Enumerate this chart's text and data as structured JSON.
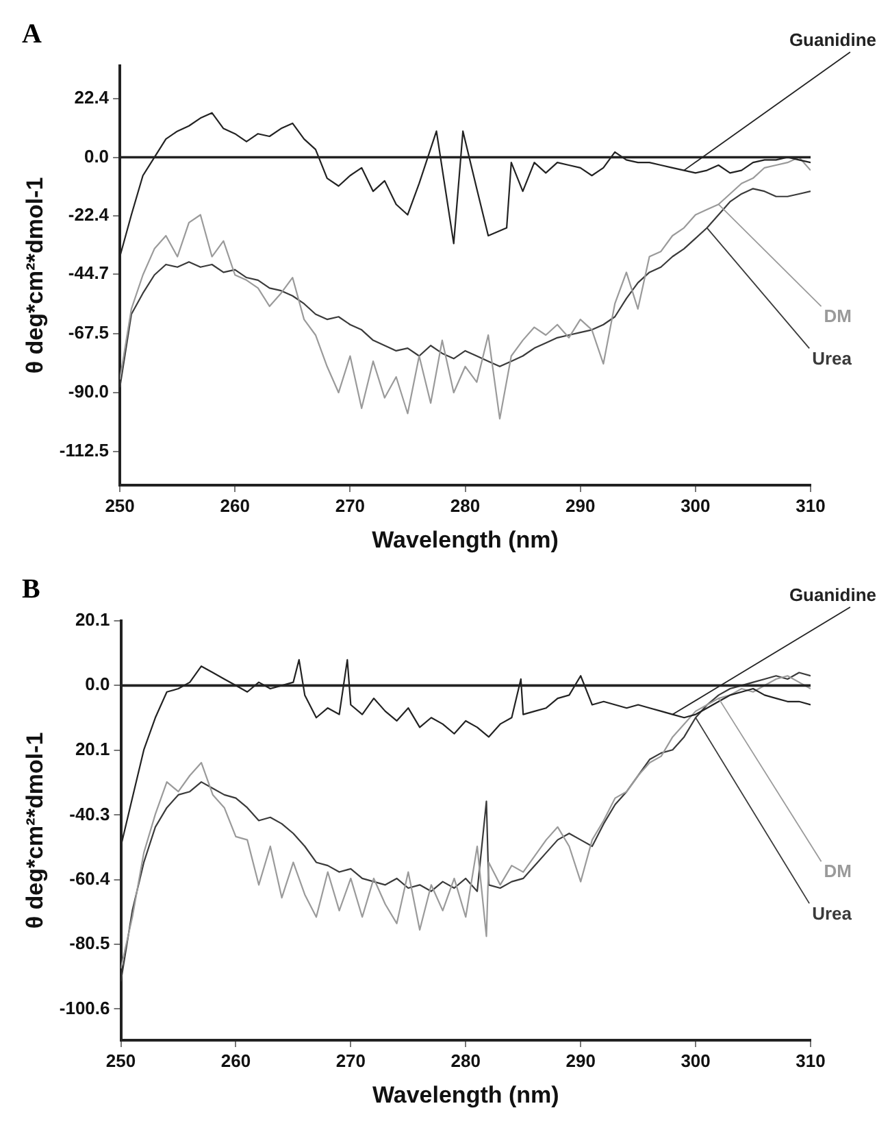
{
  "chart_data": [
    {
      "type": "line",
      "title": "A",
      "xlabel": "Wavelength (nm)",
      "ylabel": "θ deg*cm²*dmol-1",
      "xlim": [
        250,
        310
      ],
      "xticks": [
        250,
        260,
        270,
        280,
        290,
        300,
        310
      ],
      "ylim": [
        -125.4,
        35
      ],
      "yticks": [
        22.4,
        {
          "value": 0,
          "label": "0.0"
        },
        -22.4,
        -44.7,
        -67.5,
        {
          "value": -90,
          "label": "-90.0"
        },
        -112.5
      ],
      "grid": false,
      "legend": false,
      "marker": "none",
      "ref_lines": [
        {
          "axis": "y",
          "value": 0,
          "color": "#222222"
        }
      ],
      "series": [
        {
          "name": "Guanidine",
          "color": "#222222",
          "x": [
            250,
            251,
            252,
            253,
            254,
            255,
            256,
            257,
            258,
            259,
            260,
            261,
            262,
            263,
            264,
            265,
            266,
            267,
            268,
            269,
            270,
            271,
            272,
            273,
            274,
            275,
            276,
            277.5,
            279,
            279.8,
            281,
            282,
            283.6,
            284,
            285,
            286,
            287,
            288,
            289,
            290,
            291,
            292,
            293,
            294,
            295,
            296,
            297,
            298,
            299,
            300,
            301,
            302,
            303,
            304,
            305,
            306,
            307,
            308,
            309,
            310
          ],
          "values": [
            -38,
            -22,
            -7,
            0,
            7,
            10,
            12,
            15,
            17,
            11,
            9,
            6,
            9,
            8,
            11,
            13,
            7,
            3,
            -8,
            -11,
            -7,
            -4,
            -13,
            -9,
            -18,
            -22,
            -10,
            10,
            -33,
            10,
            -12,
            -30,
            -27,
            -2,
            -13,
            -2,
            -6,
            -2,
            -3,
            -4,
            -7,
            -4,
            2,
            -1,
            -2,
            -2,
            -3,
            -4,
            -5,
            -6,
            -5,
            -3,
            -6,
            -5,
            -2,
            -1,
            -1,
            0,
            -1,
            -2
          ]
        },
        {
          "name": "DM",
          "color": "#9a9a9a",
          "x": [
            250,
            251,
            252,
            253,
            254,
            255,
            256,
            257,
            258,
            259,
            260,
            261,
            262,
            263,
            264,
            265,
            266,
            267,
            268,
            269,
            270,
            271,
            272,
            273,
            274,
            275,
            276,
            277,
            278,
            279,
            280,
            281,
            282,
            283,
            284,
            285,
            286,
            287,
            288,
            289,
            290,
            291,
            292,
            293,
            294,
            295,
            296,
            297,
            298,
            299,
            300,
            301,
            302,
            303,
            304,
            305,
            306,
            307,
            308,
            309,
            310
          ],
          "values": [
            -85,
            -58,
            -45,
            -35,
            -30,
            -38,
            -25,
            -22,
            -38,
            -32,
            -45,
            -47,
            -50,
            -57,
            -52,
            -46,
            -62,
            -68,
            -80,
            -90,
            -76,
            -96,
            -78,
            -92,
            -84,
            -98,
            -76,
            -94,
            -70,
            -90,
            -80,
            -86,
            -68,
            -100,
            -76,
            -70,
            -65,
            -68,
            -64,
            -69,
            -62,
            -66,
            -79,
            -56,
            -44,
            -58,
            -38,
            -36,
            -30,
            -27,
            -22,
            -20,
            -18,
            -14,
            -10,
            -8,
            -4,
            -3,
            -2,
            0,
            -5
          ]
        },
        {
          "name": "Urea",
          "color": "#3a3a3a",
          "x": [
            250,
            251,
            252,
            253,
            254,
            255,
            256,
            257,
            258,
            259,
            260,
            261,
            262,
            263,
            264,
            265,
            266,
            267,
            268,
            269,
            270,
            271,
            272,
            273,
            274,
            275,
            276,
            277,
            278,
            279,
            280,
            281,
            282,
            283,
            284,
            285,
            286,
            287,
            288,
            289,
            290,
            291,
            292,
            293,
            294,
            295,
            296,
            297,
            298,
            299,
            300,
            301,
            302,
            303,
            304,
            305,
            306,
            307,
            308,
            309,
            310
          ],
          "values": [
            -88,
            -60,
            -52,
            -45,
            -41,
            -42,
            -40,
            -42,
            -41,
            -44,
            -43,
            -46,
            -47,
            -50,
            -51,
            -53,
            -56,
            -60,
            -62,
            -61,
            -64,
            -66,
            -70,
            -72,
            -74,
            -73,
            -76,
            -72,
            -75,
            -77,
            -74,
            -76,
            -78,
            -80,
            -78,
            -76,
            -73,
            -71,
            -69,
            -68,
            -67,
            -66,
            -64,
            -61,
            -54,
            -48,
            -44,
            -42,
            -38,
            -35,
            -31,
            -27,
            -22,
            -17,
            -14,
            -12,
            -13,
            -15,
            -15,
            -14,
            -13
          ]
        }
      ]
    },
    {
      "type": "line",
      "title": "B",
      "xlabel": "Wavelength (nm)",
      "ylabel": "θ deg*cm²*dmol-1",
      "xlim": [
        250,
        310
      ],
      "xticks": [
        250,
        260,
        270,
        280,
        290,
        300,
        310
      ],
      "ylim": [
        -110.3,
        20.1
      ],
      "yticks": [
        20.1,
        {
          "value": 0,
          "label": "0.0"
        },
        {
          "value": -20.1,
          "label": "20.1"
        },
        -40.3,
        -60.4,
        -80.5,
        -100.6
      ],
      "grid": false,
      "legend": false,
      "marker": "none",
      "ref_lines": [
        {
          "axis": "y",
          "value": 0,
          "color": "#222222"
        }
      ],
      "series": [
        {
          "name": "Guanidine",
          "color": "#222222",
          "x": [
            250,
            251,
            252,
            253,
            254,
            255,
            256,
            257,
            258,
            259,
            260,
            261,
            262,
            263,
            264,
            265,
            265.5,
            266,
            267,
            268,
            269,
            269.7,
            270,
            271,
            272,
            273,
            274,
            275,
            276,
            277,
            278,
            279,
            280,
            281,
            282,
            283,
            284,
            284.8,
            285,
            286,
            287,
            288,
            289,
            290,
            291,
            292,
            293,
            294,
            295,
            296,
            297,
            298,
            299,
            300,
            301,
            302,
            303,
            304,
            305,
            306,
            307,
            308,
            309,
            310
          ],
          "values": [
            -50,
            -35,
            -20,
            -10,
            -2,
            -1,
            1,
            6,
            4,
            2,
            0,
            -2,
            1,
            -1,
            0,
            1,
            8,
            -3,
            -10,
            -7,
            -9,
            8,
            -6,
            -9,
            -4,
            -8,
            -11,
            -7,
            -13,
            -10,
            -12,
            -15,
            -11,
            -13,
            -16,
            -12,
            -10,
            2,
            -9,
            -8,
            -7,
            -4,
            -3,
            3,
            -6,
            -5,
            -6,
            -7,
            -6,
            -7,
            -8,
            -9,
            -10,
            -9,
            -7,
            -5,
            -3,
            -2,
            -1,
            -3,
            -4,
            -5,
            -5,
            -6
          ]
        },
        {
          "name": "DM",
          "color": "#9a9a9a",
          "x": [
            250,
            251,
            252,
            253,
            254,
            255,
            256,
            257,
            258,
            259,
            260,
            261,
            262,
            263,
            264,
            265,
            266,
            267,
            268,
            269,
            270,
            271,
            272,
            273,
            274,
            275,
            276,
            277,
            278,
            279,
            280,
            281,
            281.8,
            282,
            283,
            284,
            285,
            286,
            287,
            288,
            289,
            290,
            291,
            292,
            293,
            294,
            295,
            296,
            297,
            298,
            299,
            300,
            301,
            302,
            303,
            304,
            305,
            306,
            307,
            308,
            309,
            310
          ],
          "values": [
            -88,
            -72,
            -52,
            -40,
            -30,
            -33,
            -28,
            -24,
            -34,
            -38,
            -47,
            -48,
            -62,
            -50,
            -66,
            -55,
            -65,
            -72,
            -58,
            -70,
            -60,
            -72,
            -60,
            -68,
            -74,
            -58,
            -76,
            -62,
            -70,
            -60,
            -72,
            -50,
            -78,
            -55,
            -62,
            -56,
            -58,
            -53,
            -48,
            -44,
            -50,
            -61,
            -48,
            -42,
            -35,
            -33,
            -28,
            -24,
            -22,
            -16,
            -12,
            -8,
            -6,
            -4,
            -3,
            -1,
            -2,
            0,
            2,
            3,
            1,
            -1
          ]
        },
        {
          "name": "Urea",
          "color": "#3a3a3a",
          "x": [
            250,
            251,
            252,
            253,
            254,
            255,
            256,
            257,
            258,
            259,
            260,
            261,
            262,
            263,
            264,
            265,
            266,
            267,
            268,
            269,
            270,
            271,
            272,
            273,
            274,
            275,
            276,
            277,
            278,
            279,
            280,
            281,
            281.8,
            282,
            283,
            284,
            285,
            286,
            287,
            288,
            289,
            290,
            291,
            292,
            293,
            294,
            295,
            296,
            297,
            298,
            299,
            300,
            301,
            302,
            303,
            304,
            305,
            306,
            307,
            308,
            309,
            310
          ],
          "values": [
            -92,
            -70,
            -55,
            -44,
            -38,
            -34,
            -33,
            -30,
            -32,
            -34,
            -35,
            -38,
            -42,
            -41,
            -43,
            -46,
            -50,
            -55,
            -56,
            -58,
            -57,
            -60,
            -61,
            -62,
            -60,
            -63,
            -62,
            -64,
            -61,
            -63,
            -60,
            -64,
            -36,
            -62,
            -63,
            -61,
            -60,
            -56,
            -52,
            -48,
            -46,
            -48,
            -50,
            -43,
            -37,
            -33,
            -28,
            -23,
            -21,
            -20,
            -16,
            -10,
            -6,
            -3,
            -1,
            0,
            1,
            2,
            3,
            2,
            4,
            3
          ]
        }
      ]
    }
  ]
}
